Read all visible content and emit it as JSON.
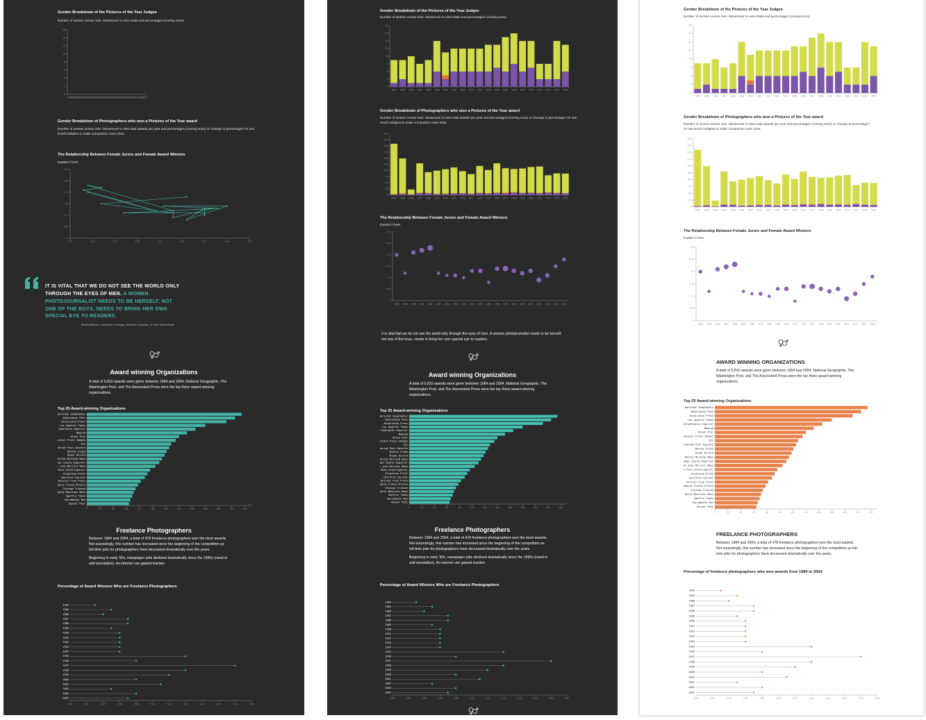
{
  "panels": [
    {
      "background": "#2a2a2a",
      "text_color": "#ffffff",
      "axis_color": "#8a8a8a",
      "accent": "#45b5a8",
      "stacked_bars": false,
      "scatter_style": "line",
      "quote_style": "pull",
      "uppercase_headings": false,
      "alt_titles": false,
      "show_second_paragraph": true
    },
    {
      "background": "#2a2a2a",
      "text_color": "#ffffff",
      "axis_color": "#8a8a8a",
      "accent": "#45c1b3",
      "stacked_bars": true,
      "scatter_style": "bubble",
      "quote_style": "plain",
      "uppercase_headings": false,
      "alt_titles": false,
      "show_second_paragraph": true
    },
    {
      "background": "#ffffff",
      "text_color": "#222222",
      "axis_color": "#9a9a9a",
      "accent": "#e8824c",
      "stacked_bars": true,
      "scatter_style": "bubble",
      "quote_style": "none",
      "uppercase_headings": true,
      "alt_titles": true,
      "show_second_paragraph": false
    }
  ],
  "jurors": {
    "title": "Gender Breakdown of the Pictures of the Year Judges",
    "description": "Number of women versus men. Mouseover to view totals and percentages (coming soon).",
    "categories": [
      "1984",
      "1985",
      "1986",
      "1987",
      "1988",
      "1989",
      "1990",
      "1991",
      "1992",
      "1993",
      "1994",
      "1995",
      "1996",
      "1997",
      "1998",
      "1999",
      "2000",
      "2001",
      "2002",
      "2003",
      "2004"
    ],
    "series": [
      {
        "color": "#7b55a8",
        "values": [
          1,
          2,
          1,
          1,
          1,
          4,
          2,
          4,
          4,
          4,
          4,
          4,
          5,
          4,
          6,
          4,
          5,
          2,
          2,
          2,
          4
        ]
      },
      {
        "color": "#e8733a",
        "values": [
          0,
          0,
          0,
          0,
          0,
          0,
          1,
          0,
          0,
          0,
          0,
          0,
          0,
          0,
          0,
          0,
          0,
          0,
          0,
          0,
          0
        ]
      },
      {
        "color": "#d4db4a",
        "values": [
          6,
          5,
          7,
          5,
          6,
          8,
          6,
          6,
          6,
          6,
          6,
          7,
          6,
          9,
          8,
          8,
          7,
          4,
          4,
          10,
          7
        ]
      }
    ],
    "ylim": [
      0,
      16
    ],
    "yticks": [
      0,
      2,
      4,
      6,
      8,
      10,
      12,
      14,
      16
    ]
  },
  "photographers": {
    "title": "Gender Breakdown of Photographers who won a Pictures of the Year award",
    "description": "Number of women versus men. Mouseover to view total awards per year and percentages (coming soon) or Change to percentage? Or use small multiples to make comparison more clear.",
    "categories": [
      "1984",
      "1985",
      "1986",
      "1987",
      "1988",
      "1989",
      "1990",
      "1991",
      "1992",
      "1993",
      "1994",
      "1995",
      "1996",
      "1997",
      "1998",
      "1999",
      "2000",
      "2001",
      "2002",
      "2003",
      "2004"
    ],
    "series": [
      {
        "color": "#7b55a8",
        "values": [
          3,
          5,
          2,
          8,
          7,
          4,
          5,
          6,
          7,
          5,
          8,
          6,
          9,
          7,
          10,
          8,
          9,
          7,
          10,
          8,
          7
        ]
      },
      {
        "color": "#e8733a",
        "values": [
          1,
          2,
          1,
          1,
          2,
          1,
          1,
          2,
          1,
          1,
          1,
          2,
          1,
          3,
          2,
          1,
          1,
          2,
          1,
          1,
          1
        ]
      },
      {
        "color": "#d4db4a",
        "values": [
          206,
          143,
          20,
          121,
          85,
          95,
          100,
          105,
          90,
          80,
          110,
          95,
          120,
          100,
          95,
          100,
          105,
          108,
          70,
          80,
          80
        ]
      }
    ],
    "ylim": [
      0,
      250
    ],
    "yticks": [
      0,
      25,
      50,
      75,
      100,
      125,
      150,
      175,
      200,
      225,
      250
    ]
  },
  "relationship": {
    "title": "The Relationship Between Female Jurors and Female Award Winners",
    "description": "Explain it here.",
    "categories": [
      "1984",
      "1985",
      "1986",
      "1987",
      "1988",
      "1989",
      "1990",
      "1991",
      "1992",
      "1993",
      "1994",
      "1995",
      "1996",
      "1997",
      "1998",
      "1999",
      "2000",
      "2001",
      "2002",
      "2003",
      "2004"
    ],
    "female_juror_share": [
      0.14,
      0.29,
      0.13,
      0.17,
      0.14,
      0.33,
      0.22,
      0.4,
      0.4,
      0.4,
      0.4,
      0.36,
      0.45,
      0.31,
      0.43,
      0.33,
      0.42,
      0.33,
      0.33,
      0.17,
      0.36
    ],
    "female_winner_share": [
      0.2,
      0.12,
      0.21,
      0.22,
      0.23,
      0.12,
      0.11,
      0.11,
      0.1,
      0.13,
      0.13,
      0.08,
      0.14,
      0.14,
      0.13,
      0.12,
      0.13,
      0.09,
      0.11,
      0.15,
      0.18
    ],
    "bubble_size": [
      3,
      2,
      4,
      5,
      6,
      2,
      2,
      3,
      2,
      3,
      4,
      2,
      4,
      6,
      4,
      4,
      4,
      5,
      4,
      3,
      3
    ],
    "bubble_color": "#8a64b8",
    "xlim": [
      0.1,
      0.5
    ],
    "xticks": [
      0.1,
      0.15,
      0.2,
      0.25,
      0.3,
      0.35,
      0.4,
      0.45,
      0.5
    ],
    "ylim": [
      0,
      0.3
    ],
    "yticks": [
      0,
      0.05,
      0.1,
      0.15,
      0.2,
      0.25,
      0.3
    ]
  },
  "quote": {
    "part1": "It is vital that we do not see the world only through the eyes of men.",
    "part2": "A women photojournalist needs to be herself, not one of the boys, needs to bring her own special eye to readers.",
    "attribution": "Beverly Bethune, University of Georgia, School of Journalism, in Truth Needs Words"
  },
  "organizations": {
    "heading": "Award winning Organizations",
    "paragraph": "A total of 5,810 awards were given between 1984 and 2004. National Geographic, The Washington Post, and The Associated Press were the top three award-winning organizations.",
    "chart_title": "Top 25 Award-winning Organizations",
    "categories": [
      "National Geographic",
      "Washington Post",
      "Associated Press",
      "Los Angeles Times",
      "Philadelphia Inquirer",
      "Magnum",
      "Black Star",
      "Contact Press Images",
      "VII",
      "Pittsburgh Post-Gazette",
      "Boston Globe",
      "Miami Herald",
      "Dallas Morning News",
      "Orange County Register",
      "San Jose Mercury News",
      "Seattle Post-Intelligencer",
      "Virginian-Pilot",
      "Hartford Courant",
      "Detroit Free Press",
      "Agence France-Presse",
      "Chicago Tribune",
      "Rocky Mountain News",
      "Seattle Times",
      "Sacramento Bee",
      "Denver Post"
    ],
    "values": [
      235,
      225,
      212,
      180,
      165,
      152,
      140,
      135,
      128,
      125,
      121,
      118,
      114,
      110,
      104,
      96,
      92,
      88,
      82,
      78,
      74,
      71,
      69,
      66,
      64
    ],
    "xlim": [
      0,
      250
    ],
    "xticks": [
      0,
      20,
      40,
      60,
      80,
      100,
      120,
      140,
      160,
      180,
      200,
      220,
      240
    ]
  },
  "freelance": {
    "heading": "Freelance Photographers",
    "paragraphs": [
      "Between 1984 and 2004, a total of 478 freelance photographers won the most awards. Not surprisingly, this number has increased since the beginning of the competition as full-time jobs for photographers have decreased dramatically over the years.",
      "Beginning in early '90s, newspaper jobs declined dramatically since the 1990s (need to add annotation). As internet use gained traction"
    ],
    "chart_title": "Percentage of Award Winners Who are Freelance Photographers",
    "chart_title_alt": "Percentage of freelance photographers who won awards from 1984 to 2004.",
    "categories": [
      "1984",
      "1985",
      "1986",
      "1987",
      "1988",
      "1989",
      "1990",
      "1991",
      "1992",
      "1993",
      "1994",
      "1995",
      "1996",
      "1997",
      "1998",
      "1999",
      "2000",
      "2001",
      "2002",
      "2003",
      "2004"
    ],
    "values": [
      0.03,
      0.05,
      0.04,
      0.07,
      0.07,
      0.05,
      0.06,
      0.06,
      0.06,
      0.06,
      0.06,
      0.14,
      0.08,
      0.2,
      0.14,
      0.12,
      0.08,
      0.11,
      0.05,
      0.08,
      0.07
    ],
    "xlim": [
      0,
      0.22
    ],
    "xticks": [
      {
        "value": 0,
        "label": "0.00"
      },
      0.02,
      0.04,
      0.06,
      0.08,
      {
        "value": 0.1,
        "label": "0.10"
      },
      0.12,
      0.14,
      0.16,
      0.18,
      {
        "value": 0.2,
        "label": "0.20"
      },
      0.22
    ]
  }
}
